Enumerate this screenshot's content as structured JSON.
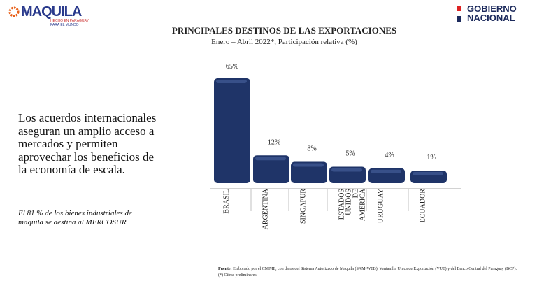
{
  "header": {
    "logo_name": "MAQUILA",
    "logo_sub_1": "HECHO EN PARAGUAY",
    "logo_sub_2": "PARA EL MUNDO",
    "gov_1": "GOBIERNO",
    "gov_2": "NACIONAL"
  },
  "side": {
    "text": "Los acuerdos internacionales aseguran un amplio acceso a mercados y permiten aprovechar los beneficios de la economía de escala.",
    "note": "El 81 % de los bienes industriales de maquila se destina al MERCOSUR"
  },
  "source": {
    "label": "Fuente:",
    "text": " Elaborado por el CNIME, con datos del Sistema Autorizado de Maquila (SAM-WEB), Ventanilla Única de Exportación (VUE) y del Banco Central del Paraguay (BCP).",
    "note": "(*) Cifras preliminares."
  },
  "chart_data": {
    "type": "bar",
    "title": "PRINCIPALES DESTINOS  DE LAS EXPORTACIONES",
    "subtitle": "Enero – Abril 2022*, Participación relativa (%)",
    "categories": [
      "BRASIL",
      "ARGENTINA",
      "SINGAPUR",
      "ESTADOS UNIDOS DE AMERICA",
      "URUGUAY",
      "ECUADOR"
    ],
    "values": [
      65,
      12,
      8,
      5,
      4,
      1
    ],
    "labels": [
      "65%",
      "12%",
      "8%",
      "5%",
      "4%",
      "1%"
    ],
    "bar_color": "#1f3468",
    "ylim": [
      0,
      65
    ]
  }
}
